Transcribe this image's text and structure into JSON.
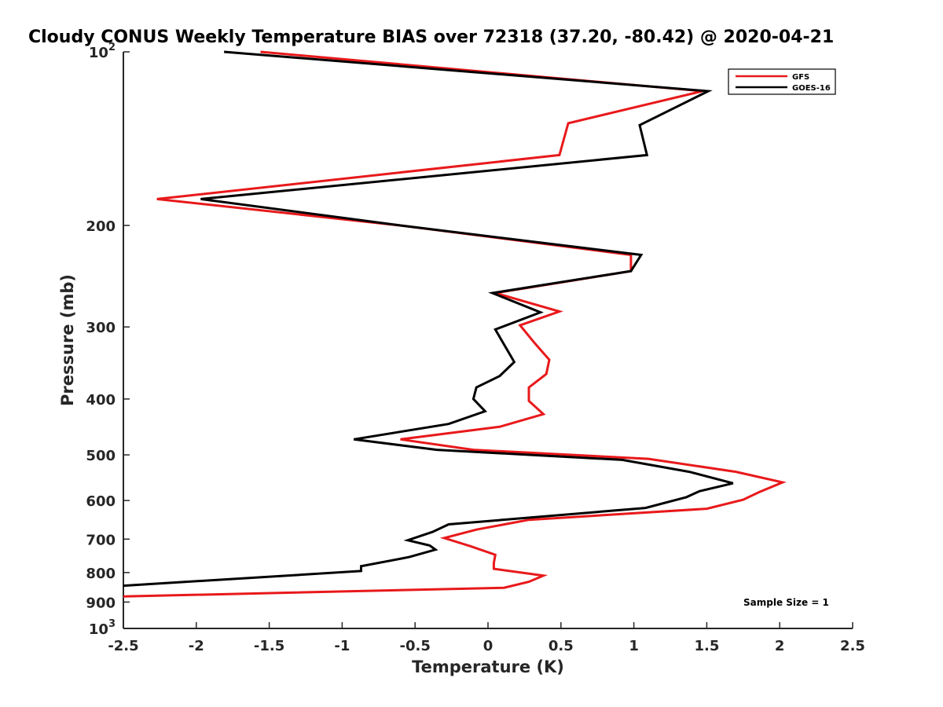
{
  "chart_data": {
    "type": "line",
    "title": "Cloudy CONUS Weekly Temperature BIAS over 72318 (37.20, -80.42) @ 2020-04-21",
    "xlabel": "Temperature (K)",
    "ylabel": "Pressure (mb)",
    "xlim": [
      -2.5,
      2.5
    ],
    "ylim": [
      100,
      1000
    ],
    "y_scale": "log",
    "y_reversed": true,
    "grid": false,
    "legend_position": "top-right",
    "x_ticks": [
      "-2.5",
      "-2",
      "-1.5",
      "-1",
      "-0.5",
      "0",
      "0.5",
      "1",
      "1.5",
      "2",
      "2.5"
    ],
    "x_tick_values": [
      -2.5,
      -2,
      -1.5,
      -1,
      -0.5,
      0,
      0.5,
      1,
      1.5,
      2,
      2.5
    ],
    "y_ticks": [
      {
        "value": 100,
        "base": "10",
        "exp": "2"
      },
      {
        "value": 200,
        "base": "200",
        "exp": ""
      },
      {
        "value": 300,
        "base": "300",
        "exp": ""
      },
      {
        "value": 400,
        "base": "400",
        "exp": ""
      },
      {
        "value": 500,
        "base": "500",
        "exp": ""
      },
      {
        "value": 600,
        "base": "600",
        "exp": ""
      },
      {
        "value": 700,
        "base": "700",
        "exp": ""
      },
      {
        "value": 800,
        "base": "800",
        "exp": ""
      },
      {
        "value": 900,
        "base": "900",
        "exp": ""
      },
      {
        "value": 1000,
        "base": "10",
        "exp": "3"
      }
    ],
    "series": [
      {
        "name": "GFS",
        "color": "#e8191b",
        "points": [
          [
            -1.56,
            100
          ],
          [
            1.47,
            117
          ],
          [
            0.55,
            133
          ],
          [
            0.49,
            151
          ],
          [
            -2.27,
            180
          ],
          [
            -0.6,
            200
          ],
          [
            0.98,
            225
          ],
          [
            0.98,
            240
          ],
          [
            0.05,
            262
          ],
          [
            0.49,
            282
          ],
          [
            0.22,
            298
          ],
          [
            0.32,
            320
          ],
          [
            0.42,
            342
          ],
          [
            0.4,
            362
          ],
          [
            0.28,
            382
          ],
          [
            0.28,
            403
          ],
          [
            0.38,
            425
          ],
          [
            0.08,
            447
          ],
          [
            -0.6,
            470
          ],
          [
            -0.1,
            490
          ],
          [
            1.1,
            508
          ],
          [
            1.7,
            535
          ],
          [
            2.02,
            558
          ],
          [
            1.86,
            580
          ],
          [
            1.75,
            598
          ],
          [
            1.5,
            620
          ],
          [
            0.28,
            648
          ],
          [
            -0.08,
            674
          ],
          [
            -0.3,
            697
          ],
          [
            -0.12,
            720
          ],
          [
            0.05,
            745
          ],
          [
            0.04,
            770
          ],
          [
            0.04,
            788
          ],
          [
            0.38,
            810
          ],
          [
            0.28,
            830
          ],
          [
            0.11,
            850
          ],
          [
            -2.5,
            880
          ]
        ]
      },
      {
        "name": "GOES-16",
        "color": "#000000",
        "points": [
          [
            -1.81,
            100
          ],
          [
            1.51,
            117
          ],
          [
            1.04,
            134
          ],
          [
            1.09,
            151
          ],
          [
            -1.97,
            180
          ],
          [
            -0.6,
            200
          ],
          [
            1.05,
            225
          ],
          [
            0.98,
            240
          ],
          [
            0.03,
            262
          ],
          [
            0.36,
            283
          ],
          [
            0.05,
            303
          ],
          [
            0.12,
            325
          ],
          [
            0.18,
            345
          ],
          [
            0.08,
            365
          ],
          [
            -0.08,
            382
          ],
          [
            -0.1,
            400
          ],
          [
            -0.02,
            420
          ],
          [
            -0.27,
            442
          ],
          [
            -0.92,
            470
          ],
          [
            -0.35,
            490
          ],
          [
            0.92,
            510
          ],
          [
            1.38,
            535
          ],
          [
            1.68,
            560
          ],
          [
            1.45,
            578
          ],
          [
            1.36,
            592
          ],
          [
            1.08,
            618
          ],
          [
            -0.27,
            660
          ],
          [
            -0.38,
            680
          ],
          [
            -0.55,
            703
          ],
          [
            -0.4,
            718
          ],
          [
            -0.36,
            730
          ],
          [
            -0.54,
            752
          ],
          [
            -0.87,
            780
          ],
          [
            -0.87,
            795
          ],
          [
            -2.5,
            843
          ]
        ]
      }
    ],
    "annotations": [
      "Sample Size = 1"
    ]
  }
}
